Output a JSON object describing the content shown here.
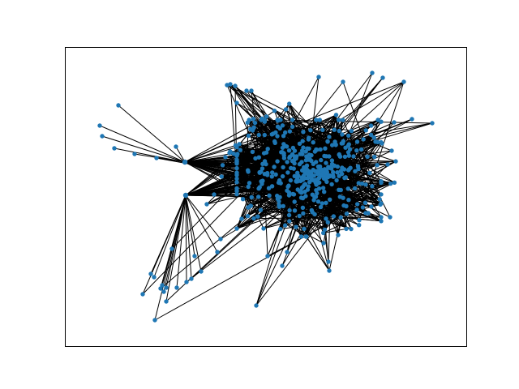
{
  "graph": {
    "node_color": "#1f77b4",
    "edge_color": "#000000",
    "background": "#ffffff"
  }
}
